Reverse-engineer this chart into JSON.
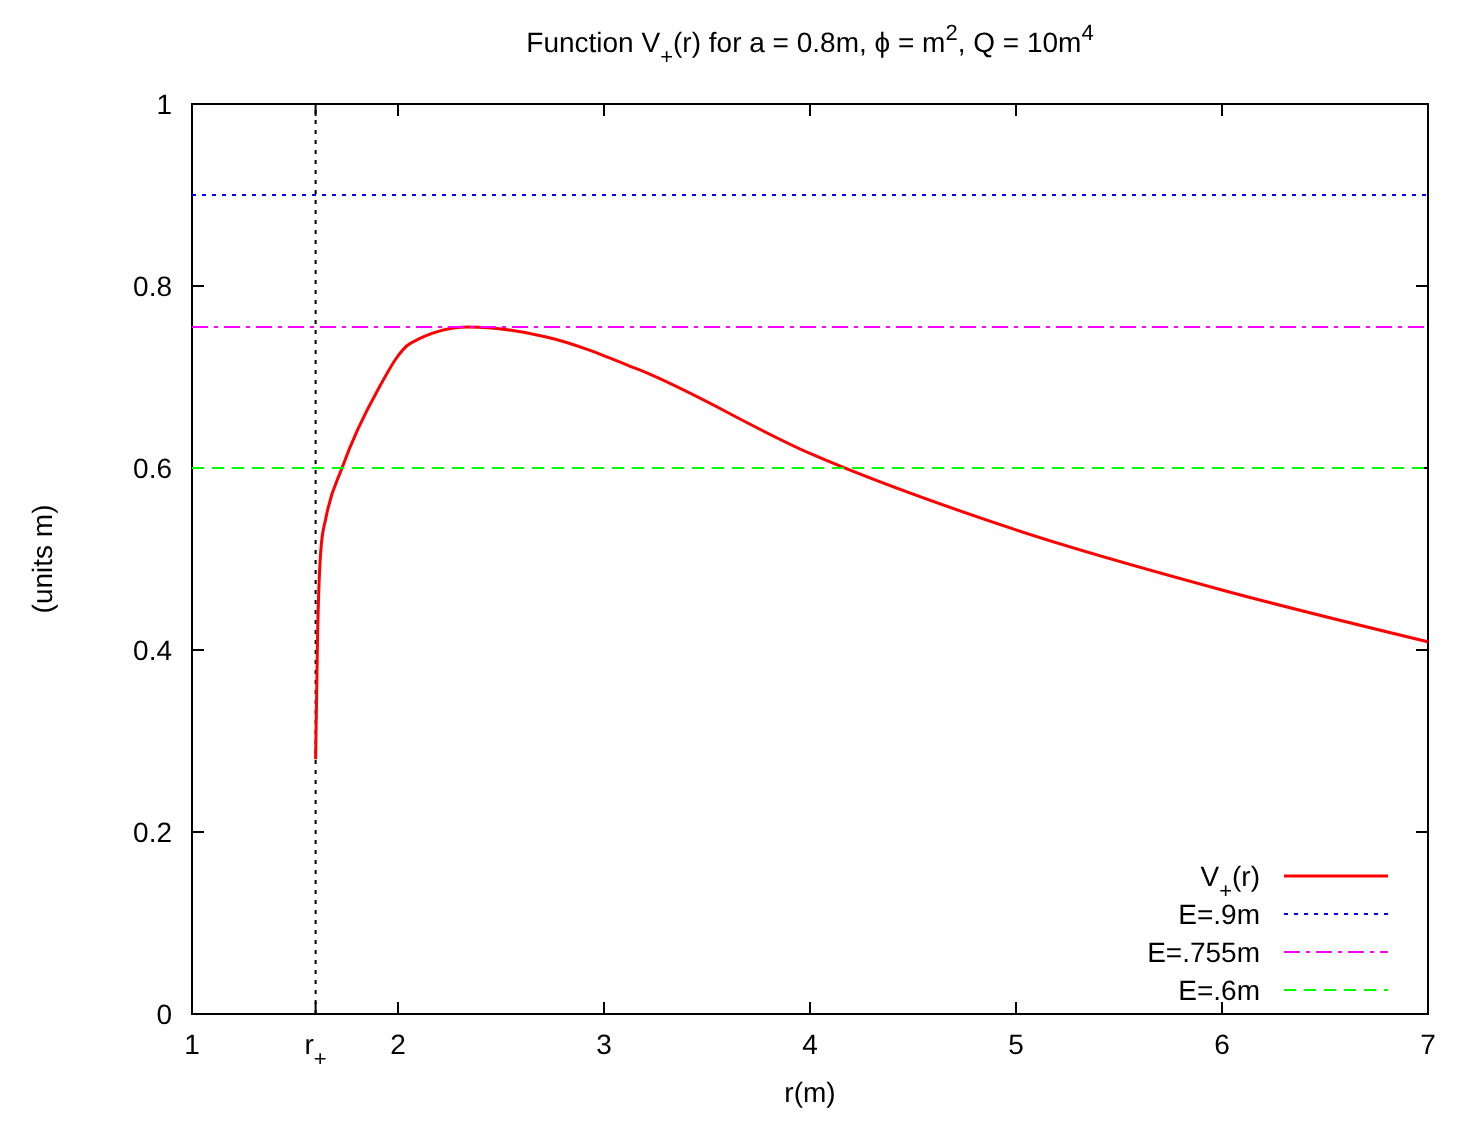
{
  "chart_data": {
    "type": "line",
    "title": "Function V$_{+}$(r) for a = 0.8m, ϕ = m$^{2}$, Q = 10m$^{4}$",
    "xlabel": "r(m)",
    "ylabel": "(units m)",
    "xlim": [
      1,
      7
    ],
    "ylim": [
      0,
      1
    ],
    "xticks": [
      1,
      {
        "value": 1.6,
        "label": "r$_{+}$"
      },
      2,
      3,
      4,
      5,
      6,
      7
    ],
    "yticks": [
      0,
      0.2,
      0.4,
      0.6,
      0.8,
      1
    ],
    "grid": false,
    "legend": "bottom right",
    "tick_labels": "xy",
    "ref_lines": [
      {
        "axis": "x",
        "value": 1.6,
        "color": "#000000",
        "line_style": "dotted"
      }
    ],
    "series": [
      {
        "name": "V$_{+}$(r)",
        "color": "#ff0000",
        "line_style": "solid",
        "x": [
          1.6,
          1.61,
          1.627,
          1.65,
          1.73,
          1.9,
          2.06,
          2.34,
          2.72,
          3.17,
          4.0,
          5,
          6,
          7
        ],
        "values": [
          0.28,
          0.42,
          0.514,
          0.545,
          0.601,
          0.685,
          0.737,
          0.755,
          0.744,
          0.708,
          0.616,
          0.532,
          0.466,
          0.409
        ]
      },
      {
        "name": "E=.9m",
        "color": "#0000ff",
        "line_style": "dotted",
        "x": [
          1,
          7
        ],
        "values": [
          0.9,
          0.9
        ]
      },
      {
        "name": "E=.755m",
        "color": "#ff00ff",
        "line_style": "dashdot",
        "x": [
          1,
          7
        ],
        "values": [
          0.755,
          0.755
        ]
      },
      {
        "name": "E=.6m",
        "color": "#00ff00",
        "line_style": "dashed",
        "x": [
          1,
          7
        ],
        "values": [
          0.6,
          0.6
        ]
      }
    ]
  }
}
